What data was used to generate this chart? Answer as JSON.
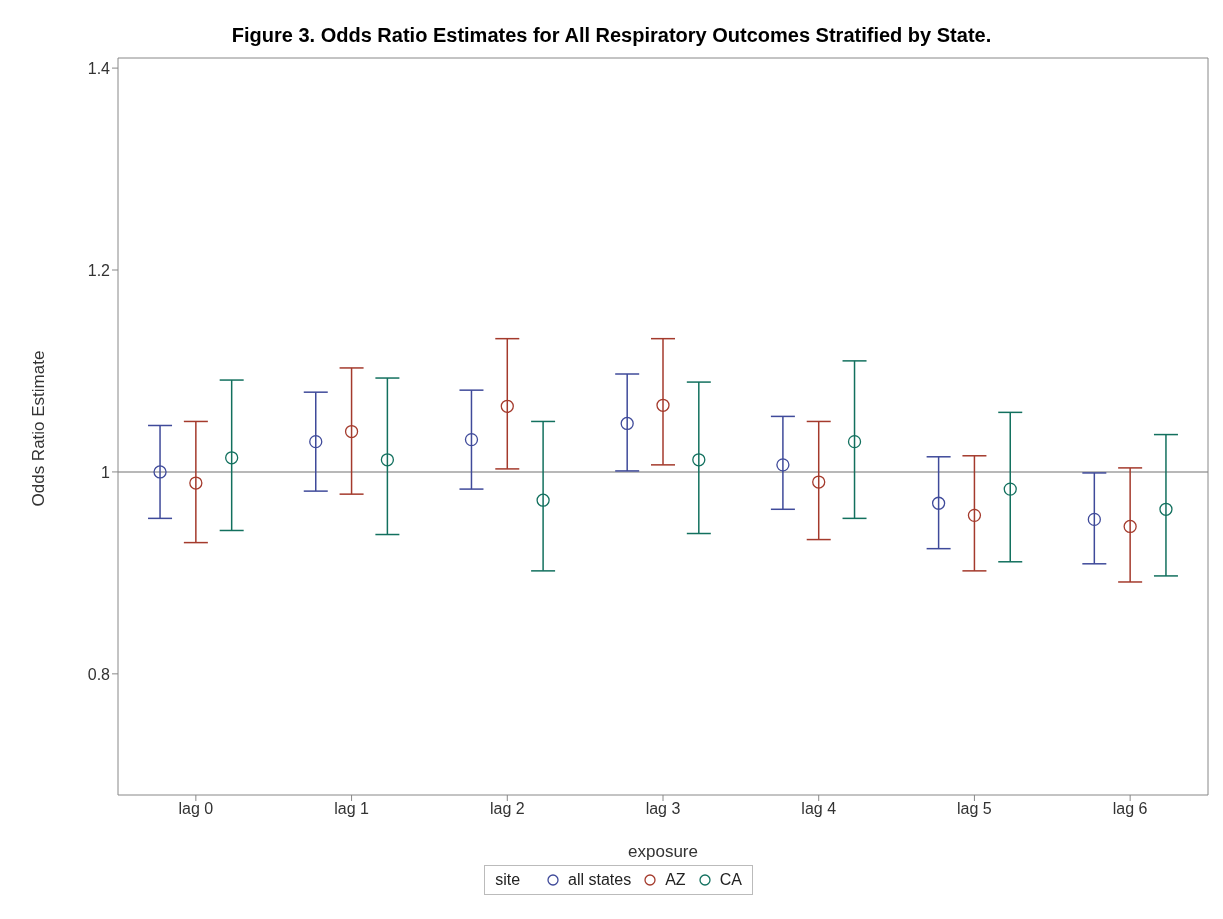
{
  "chart_data": {
    "type": "scatter",
    "title": "Figure 3. Odds Ratio Estimates for All Respiratory Outcomes Stratified by State.",
    "xlabel": "exposure",
    "ylabel": "Odds Ratio Estimate",
    "legend_title": "site",
    "categories": [
      "lag 0",
      "lag 1",
      "lag 2",
      "lag 3",
      "lag 4",
      "lag 5",
      "lag 6"
    ],
    "series": [
      {
        "name": "all states",
        "color": "#3f4a9a",
        "values": [
          1.0,
          1.03,
          1.032,
          1.048,
          1.007,
          0.969,
          0.953
        ],
        "errors": [
          [
            0.954,
            1.046
          ],
          [
            0.981,
            1.079
          ],
          [
            0.983,
            1.081
          ],
          [
            1.001,
            1.097
          ],
          [
            0.963,
            1.055
          ],
          [
            0.924,
            1.015
          ],
          [
            0.909,
            0.999
          ]
        ]
      },
      {
        "name": "AZ",
        "color": "#a43a2c",
        "values": [
          0.989,
          1.04,
          1.065,
          1.066,
          0.99,
          0.957,
          0.946
        ],
        "errors": [
          [
            0.93,
            1.05
          ],
          [
            0.978,
            1.103
          ],
          [
            1.003,
            1.132
          ],
          [
            1.007,
            1.132
          ],
          [
            0.933,
            1.05
          ],
          [
            0.902,
            1.016
          ],
          [
            0.891,
            1.004
          ]
        ]
      },
      {
        "name": "CA",
        "color": "#12705e",
        "values": [
          1.014,
          1.012,
          0.972,
          1.012,
          1.03,
          0.983,
          0.963
        ],
        "errors": [
          [
            0.942,
            1.091
          ],
          [
            0.938,
            1.093
          ],
          [
            0.902,
            1.05
          ],
          [
            0.939,
            1.089
          ],
          [
            0.954,
            1.11
          ],
          [
            0.911,
            1.059
          ],
          [
            0.897,
            1.037
          ]
        ]
      }
    ],
    "ylim": [
      0.68,
      1.41
    ],
    "yticks": [
      0.8,
      1,
      1.2,
      1.4
    ],
    "ref_lines": [
      {
        "axis": "y",
        "value": 1,
        "color": "#a0a0a0"
      }
    ],
    "marker": "circle",
    "grid": false,
    "legend": "bottom"
  }
}
